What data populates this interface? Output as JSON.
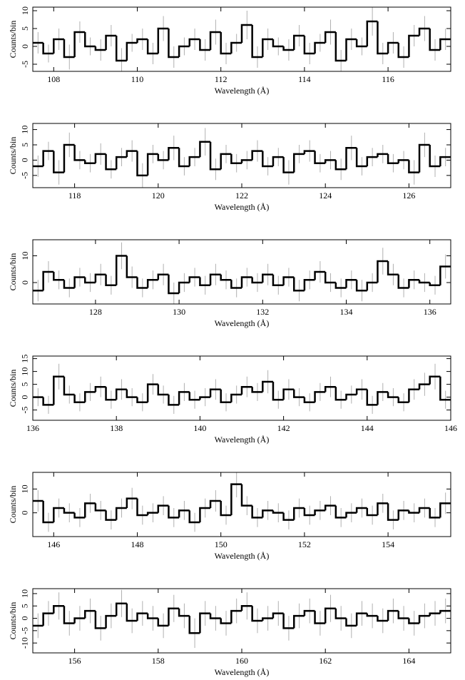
{
  "chart_data": [
    {
      "type": "histogram",
      "x_label": "Wavelength (Å)",
      "y_label": "Counts/bin",
      "color": "#000000",
      "error_color": "#b0b0b0",
      "bins": [
        107.5,
        107.75,
        108,
        108.25,
        108.5,
        108.75,
        109,
        109.25,
        109.5,
        109.75,
        110,
        110.25,
        110.5,
        110.75,
        111,
        111.25,
        111.5,
        111.75,
        112,
        112.25,
        112.5,
        112.75,
        113,
        113.25,
        113.5,
        113.75,
        114,
        114.25,
        114.5,
        114.75,
        115,
        115.25,
        115.5,
        115.75,
        116,
        116.25,
        116.5,
        116.75,
        117,
        117.25,
        117.5
      ],
      "values": [
        1,
        -2,
        2,
        -3,
        4,
        0,
        -1,
        3,
        -4,
        1,
        2,
        -2,
        5,
        -3,
        0,
        2,
        -1,
        4,
        -2,
        1,
        6,
        -3,
        2,
        0,
        -1,
        3,
        -2,
        1,
        4,
        -4,
        2,
        0,
        7,
        -2,
        1,
        -3,
        3,
        5,
        -1,
        2
      ],
      "errors": [
        3,
        2.5,
        3,
        3.5,
        3,
        2.5,
        3,
        3,
        3.5,
        2.5,
        3,
        3,
        3.5,
        3,
        2.5,
        3,
        3,
        3.5,
        3,
        2.5,
        4,
        3,
        3,
        2.5,
        3,
        3,
        3,
        2.5,
        3.5,
        3,
        3,
        2.5,
        4,
        3,
        3,
        3,
        3,
        3.5,
        3,
        3
      ],
      "xlim": [
        107.5,
        117.5
      ],
      "ylim": [
        -7,
        11
      ],
      "xticks": [
        108,
        110,
        112,
        114,
        116
      ],
      "yticks": [
        -5,
        0,
        5,
        10
      ]
    },
    {
      "type": "histogram",
      "x_label": "Wavelength (Å)",
      "y_label": "Counts/bin",
      "color": "#000000",
      "error_color": "#b0b0b0",
      "bins": [
        117,
        117.25,
        117.5,
        117.75,
        118,
        118.25,
        118.5,
        118.75,
        119,
        119.25,
        119.5,
        119.75,
        120,
        120.25,
        120.5,
        120.75,
        121,
        121.25,
        121.5,
        121.75,
        122,
        122.25,
        122.5,
        122.75,
        123,
        123.25,
        123.5,
        123.75,
        124,
        124.25,
        124.5,
        124.75,
        125,
        125.25,
        125.5,
        125.75,
        126,
        126.25,
        126.5,
        126.75,
        127
      ],
      "values": [
        -2,
        3,
        -4,
        5,
        0,
        -1,
        2,
        -3,
        1,
        3,
        -5,
        2,
        0,
        4,
        -2,
        1,
        6,
        -3,
        2,
        -1,
        0,
        3,
        -2,
        1,
        -4,
        2,
        3,
        -1,
        0,
        -3,
        4,
        -2,
        1,
        2,
        -1,
        0,
        -4,
        5,
        -2,
        1
      ],
      "errors": [
        3.5,
        3,
        4,
        4,
        3,
        3,
        3.5,
        3,
        3,
        3.5,
        4,
        3,
        3,
        4,
        3,
        3,
        4.5,
        3.5,
        3,
        3,
        3,
        3.5,
        3,
        3,
        4,
        3,
        3.5,
        3,
        3,
        3.5,
        4,
        3,
        3,
        3,
        3,
        3,
        4,
        4,
        3.5,
        3
      ],
      "xlim": [
        117,
        127
      ],
      "ylim": [
        -9,
        12
      ],
      "xticks": [
        118,
        120,
        122,
        124,
        126
      ],
      "yticks": [
        -5,
        0,
        5,
        10
      ]
    },
    {
      "type": "histogram",
      "x_label": "Wavelength (Å)",
      "y_label": "Counts/bin",
      "color": "#000000",
      "error_color": "#b0b0b0",
      "bins": [
        126.5,
        126.75,
        127,
        127.25,
        127.5,
        127.75,
        128,
        128.25,
        128.5,
        128.75,
        129,
        129.25,
        129.5,
        129.75,
        130,
        130.25,
        130.5,
        130.75,
        131,
        131.25,
        131.5,
        131.75,
        132,
        132.25,
        132.5,
        132.75,
        133,
        133.25,
        133.5,
        133.75,
        134,
        134.25,
        134.5,
        134.75,
        135,
        135.25,
        135.5,
        135.75,
        136,
        136.25,
        136.5
      ],
      "values": [
        -3,
        4,
        1,
        -2,
        2,
        0,
        3,
        -1,
        10,
        2,
        -2,
        1,
        3,
        -4,
        0,
        2,
        -1,
        3,
        1,
        -2,
        2,
        0,
        3,
        -1,
        2,
        -3,
        1,
        4,
        0,
        -2,
        1,
        -3,
        0,
        8,
        3,
        -2,
        1,
        0,
        -1,
        6
      ],
      "errors": [
        4,
        4,
        3.5,
        3.5,
        3.5,
        3.5,
        4,
        3.5,
        5,
        4,
        3.5,
        3.5,
        4,
        4,
        3.5,
        3.5,
        3.5,
        4,
        3.5,
        3.5,
        3.5,
        3.5,
        4,
        3.5,
        3.5,
        4,
        3.5,
        4,
        3.5,
        3.5,
        3.5,
        4,
        3.5,
        5,
        4,
        3.5,
        3.5,
        3.5,
        3.5,
        4.5
      ],
      "xlim": [
        126.5,
        136.5
      ],
      "ylim": [
        -8,
        16
      ],
      "xticks": [
        128,
        130,
        132,
        134,
        136
      ],
      "yticks": [
        0,
        10
      ]
    },
    {
      "type": "histogram",
      "x_label": "Wavelength (Å)",
      "y_label": "Counts/bin",
      "color": "#000000",
      "error_color": "#b0b0b0",
      "bins": [
        136,
        136.25,
        136.5,
        136.75,
        137,
        137.25,
        137.5,
        137.75,
        138,
        138.25,
        138.5,
        138.75,
        139,
        139.25,
        139.5,
        139.75,
        140,
        140.25,
        140.5,
        140.75,
        141,
        141.25,
        141.5,
        141.75,
        142,
        142.25,
        142.5,
        142.75,
        143,
        143.25,
        143.5,
        143.75,
        144,
        144.25,
        144.5,
        144.75,
        145,
        145.25,
        145.5,
        145.75,
        146
      ],
      "values": [
        0,
        -3,
        8,
        1,
        -2,
        2,
        4,
        -1,
        3,
        0,
        -2,
        5,
        1,
        -3,
        2,
        -1,
        0,
        3,
        -2,
        1,
        4,
        2,
        6,
        -1,
        3,
        0,
        -2,
        2,
        4,
        -1,
        1,
        3,
        -3,
        2,
        0,
        -2,
        3,
        5,
        8,
        -1
      ],
      "errors": [
        3.5,
        3.5,
        5,
        3.5,
        3.5,
        3.5,
        4,
        3.5,
        4,
        3.5,
        3.5,
        4,
        3.5,
        3.5,
        3.5,
        3.5,
        3.5,
        4,
        3.5,
        3.5,
        4,
        3.5,
        4.5,
        3.5,
        4,
        3.5,
        3.5,
        3.5,
        4,
        3.5,
        3.5,
        4,
        3.5,
        3.5,
        3.5,
        3.5,
        4,
        4.5,
        5,
        3.5
      ],
      "xlim": [
        136,
        146
      ],
      "ylim": [
        -9,
        16
      ],
      "xticks": [
        136,
        138,
        140,
        142,
        144,
        146
      ],
      "yticks": [
        -5,
        0,
        5,
        10,
        15
      ]
    },
    {
      "type": "histogram",
      "x_label": "Wavelength (Å)",
      "y_label": "Counts/bin",
      "color": "#000000",
      "error_color": "#b0b0b0",
      "bins": [
        145.5,
        145.75,
        146,
        146.25,
        146.5,
        146.75,
        147,
        147.25,
        147.5,
        147.75,
        148,
        148.25,
        148.5,
        148.75,
        149,
        149.25,
        149.5,
        149.75,
        150,
        150.25,
        150.5,
        150.75,
        151,
        151.25,
        151.5,
        151.75,
        152,
        152.25,
        152.5,
        152.75,
        153,
        153.25,
        153.5,
        153.75,
        154,
        154.25,
        154.5,
        154.75,
        155,
        155.25,
        155.5
      ],
      "values": [
        5,
        -4,
        2,
        0,
        -2,
        4,
        1,
        -3,
        2,
        6,
        -1,
        0,
        3,
        -2,
        1,
        -4,
        2,
        5,
        -1,
        12,
        3,
        -2,
        1,
        0,
        -3,
        2,
        -1,
        1,
        3,
        -2,
        0,
        2,
        -1,
        4,
        -3,
        1,
        0,
        2,
        -2,
        4
      ],
      "errors": [
        4.5,
        4,
        4,
        4,
        4,
        4,
        4,
        4,
        4,
        4.5,
        4,
        4,
        4,
        4,
        4,
        4,
        4,
        4.5,
        4,
        5.5,
        4,
        4,
        4,
        4,
        4,
        4,
        4,
        4,
        4,
        4,
        4,
        4,
        4,
        4,
        4,
        4,
        4,
        4,
        4,
        4.5
      ],
      "xlim": [
        145.5,
        155.5
      ],
      "ylim": [
        -10,
        17
      ],
      "xticks": [
        146,
        148,
        150,
        152,
        154
      ],
      "yticks": [
        0,
        10
      ]
    },
    {
      "type": "histogram",
      "x_label": "Wavelength (Å)",
      "y_label": "Counts/bin",
      "color": "#000000",
      "error_color": "#b0b0b0",
      "bins": [
        155,
        155.25,
        155.5,
        155.75,
        156,
        156.25,
        156.5,
        156.75,
        157,
        157.25,
        157.5,
        157.75,
        158,
        158.25,
        158.5,
        158.75,
        159,
        159.25,
        159.5,
        159.75,
        160,
        160.25,
        160.5,
        160.75,
        161,
        161.25,
        161.5,
        161.75,
        162,
        162.25,
        162.5,
        162.75,
        163,
        163.25,
        163.5,
        163.75,
        164,
        164.25,
        164.5,
        164.75,
        165
      ],
      "values": [
        -3,
        2,
        5,
        -2,
        0,
        3,
        -4,
        1,
        6,
        -1,
        2,
        0,
        -3,
        4,
        1,
        -6,
        2,
        0,
        -2,
        3,
        5,
        -1,
        0,
        2,
        -4,
        1,
        3,
        -2,
        4,
        0,
        -3,
        2,
        1,
        -1,
        3,
        0,
        -2,
        1,
        2,
        3
      ],
      "errors": [
        5,
        5,
        5.5,
        5,
        5,
        5,
        5,
        5,
        5.5,
        5,
        5,
        5,
        5,
        5.5,
        5,
        6,
        5,
        5,
        5,
        5,
        5.5,
        5,
        5,
        5,
        5,
        5,
        5,
        5,
        5.5,
        5,
        5,
        5,
        5,
        5,
        5,
        5,
        5,
        5,
        5,
        5
      ],
      "xlim": [
        155,
        165
      ],
      "ylim": [
        -14,
        12
      ],
      "xticks": [
        156,
        158,
        160,
        162,
        164
      ],
      "yticks": [
        -10,
        -5,
        0,
        5,
        10
      ]
    }
  ]
}
